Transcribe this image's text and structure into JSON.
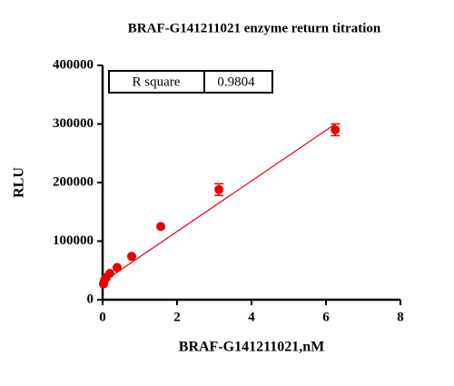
{
  "chart_data": {
    "type": "scatter",
    "title": "BRAF-G141211021 enzyme return titration",
    "x_label": "BRAF-G141211021,nM",
    "y_label": "RLU",
    "xlim": [
      0,
      8
    ],
    "xticks": [
      0,
      2,
      4,
      6,
      8
    ],
    "ylim": [
      0,
      400000
    ],
    "yticks": [
      0,
      100000,
      200000,
      300000,
      400000
    ],
    "series": [
      {
        "color": "#e60000",
        "x": [
          0.024,
          0.049,
          0.098,
          0.195,
          0.39,
          0.78,
          1.5625,
          3.125,
          6.25
        ],
        "values": [
          27000,
          33000,
          38000,
          45000,
          55000,
          74000,
          125000,
          188000,
          290000
        ],
        "errors": [
          null,
          null,
          null,
          null,
          null,
          null,
          null,
          10000,
          10000
        ]
      }
    ],
    "fit": {
      "x": [
        0,
        6.25
      ],
      "y": [
        30000,
        300000
      ],
      "color": "#e60000"
    },
    "r_square_label": "R square",
    "r_square": 0.9804
  }
}
